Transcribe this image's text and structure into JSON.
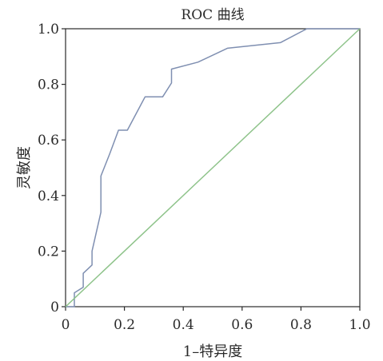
{
  "chart_data": {
    "type": "line",
    "title": "ROC 曲线",
    "xlabel": "1–特异度",
    "ylabel": "灵敏度",
    "xlim": [
      0,
      1
    ],
    "ylim": [
      0,
      1
    ],
    "x_ticks": [
      "0",
      "0.2",
      "0.4",
      "0.6",
      "0.8",
      "1.0"
    ],
    "y_ticks": [
      "0",
      "0.2",
      "0.4",
      "0.6",
      "0.8",
      "1.0"
    ],
    "grid": false,
    "series": [
      {
        "color": "#7f8fb1",
        "x": [
          0,
          0.03,
          0.03,
          0.06,
          0.06,
          0.09,
          0.09,
          0.12,
          0.12,
          0.15,
          0.18,
          0.21,
          0.27,
          0.33,
          0.36,
          0.36,
          0.45,
          0.55,
          0.73,
          0.82,
          1.0
        ],
        "y": [
          0,
          0,
          0.05,
          0.07,
          0.12,
          0.15,
          0.2,
          0.34,
          0.47,
          0.55,
          0.635,
          0.635,
          0.755,
          0.755,
          0.805,
          0.855,
          0.88,
          0.93,
          0.95,
          1.0,
          1.0
        ]
      },
      {
        "color": "#8ec38a",
        "x": [
          0,
          1
        ],
        "y": [
          0,
          1
        ]
      }
    ]
  }
}
